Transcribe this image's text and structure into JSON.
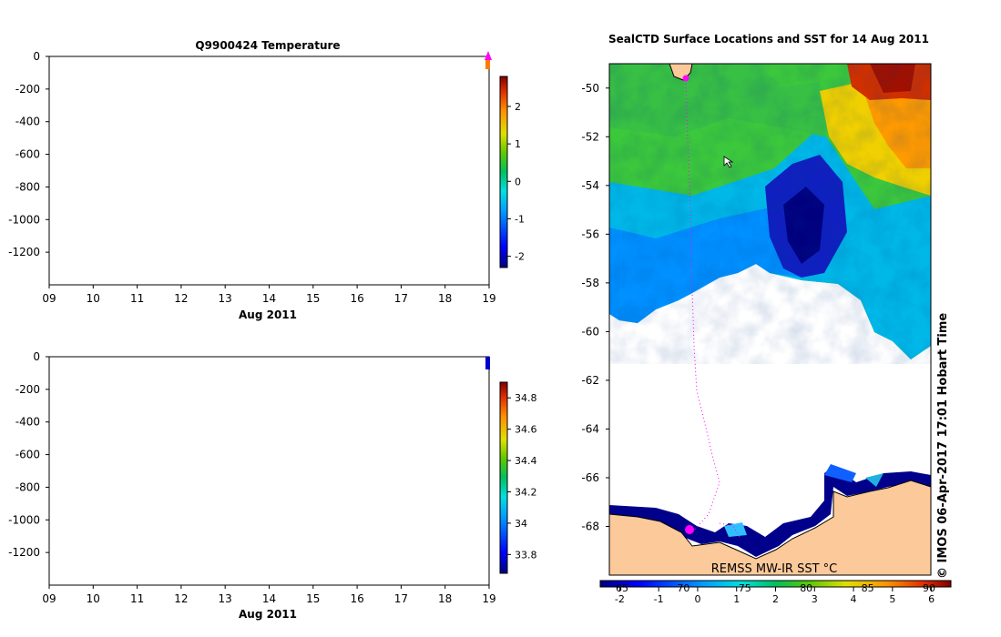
{
  "chart_data": [
    {
      "type": "heatmap",
      "title": "Q9900424  Temperature",
      "xlabel": "Aug 2011",
      "ylabel": "",
      "x_ticks": [
        "09",
        "10",
        "11",
        "12",
        "13",
        "14",
        "15",
        "16",
        "17",
        "18",
        "19"
      ],
      "y_ticks": [
        "0",
        "-200",
        "-400",
        "-600",
        "-800",
        "-1000",
        "-1200"
      ],
      "ylim": [
        -1400,
        0
      ],
      "xlim": [
        9,
        19
      ],
      "colorbar": {
        "ticks": [
          "2",
          "1",
          "0",
          "-1",
          "-2"
        ],
        "range": [
          -2.3,
          2.8
        ]
      },
      "profile": {
        "x": 19,
        "depth_from": 0,
        "depth_to": -80,
        "value": 2.5,
        "marker": "triangle"
      }
    },
    {
      "type": "heatmap",
      "title": "",
      "xlabel": "Aug 2011",
      "ylabel": "",
      "x_ticks": [
        "09",
        "10",
        "11",
        "12",
        "13",
        "14",
        "15",
        "16",
        "17",
        "18",
        "19"
      ],
      "y_ticks": [
        "0",
        "-200",
        "-400",
        "-600",
        "-800",
        "-1000",
        "-1200"
      ],
      "ylim": [
        -1400,
        0
      ],
      "xlim": [
        9,
        19
      ],
      "colorbar": {
        "ticks": [
          "34.8",
          "34.6",
          "34.4",
          "34.2",
          "34",
          "33.8"
        ],
        "range": [
          33.68,
          34.9
        ]
      },
      "profile": {
        "x": 19,
        "depth_from": 0,
        "depth_to": -80,
        "value": 33.7
      }
    },
    {
      "type": "heatmap",
      "title": "SealCTD Surface Locations and SST for 14 Aug 2011",
      "xlabel": "",
      "ylabel": "",
      "y_ticks": [
        "-50",
        "-52",
        "-54",
        "-56",
        "-58",
        "-60",
        "-62",
        "-64",
        "-66",
        "-68"
      ],
      "ylim": [
        -70,
        -49
      ],
      "x_ticks_top": [
        "65",
        "70",
        "75",
        "80",
        "85",
        "90"
      ],
      "colorbar": {
        "ticks": [
          "-2",
          "-1",
          "0",
          "1",
          "2",
          "3",
          "4",
          "5",
          "6"
        ],
        "range": [
          -2.5,
          6.5
        ],
        "label": "REMSS MW-IR SST °C"
      }
    }
  ],
  "credit": "© IMOS 06-Apr-2017 17:01 Hobart Time",
  "colors": {
    "colormap": [
      "#00007f",
      "#0000ff",
      "#007fff",
      "#00e0ff",
      "#00c8a0",
      "#00b050",
      "#40c020",
      "#a0d000",
      "#ffe000",
      "#ff9000",
      "#e03000",
      "#800000"
    ],
    "land": "#fcc99a",
    "profile_marker": "#ff00ff"
  }
}
